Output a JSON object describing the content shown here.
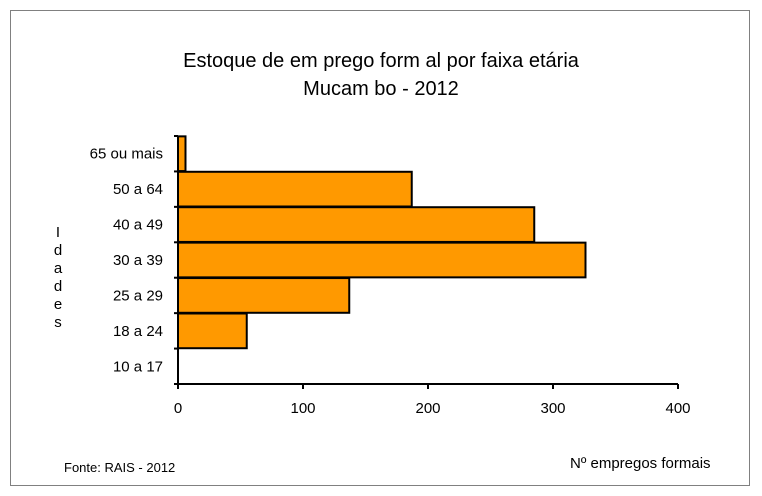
{
  "chart_data": {
    "type": "bar",
    "orientation": "horizontal",
    "title": "Estoque de em prego form al por faixa etária",
    "subtitle": "Mucam bo - 2012",
    "categories": [
      "65 ou mais",
      "50 a 64",
      "40 a 49",
      "30 a 39",
      "25 a 29",
      "18 a 24",
      "10 a 17"
    ],
    "values": [
      6,
      187,
      285,
      326,
      137,
      55,
      0
    ],
    "ylabel": "Idades",
    "ylabel_letters": [
      "I",
      "d",
      "a",
      "d",
      "e",
      "s"
    ],
    "xlabel": "Nº empregos formais",
    "xlim": [
      0,
      400
    ],
    "xticks": [
      "0",
      "100",
      "200",
      "300",
      "400"
    ],
    "bar_color": "#FF9900",
    "grid": false,
    "source": "Fonte: RAIS - 2012"
  }
}
